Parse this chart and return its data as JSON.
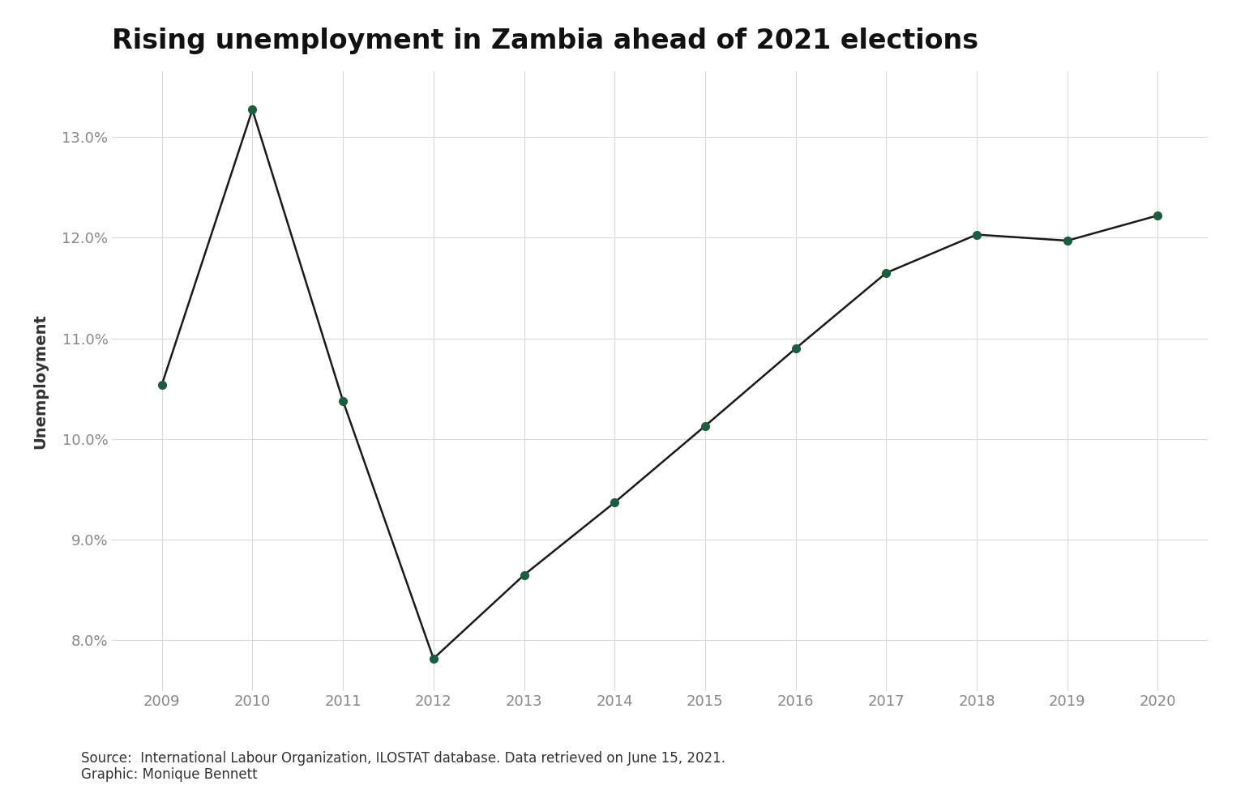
{
  "title": "Rising unemployment in Zambia ahead of 2021 elections",
  "xlabel": "",
  "ylabel": "Unemployment",
  "years": [
    2009,
    2010,
    2011,
    2012,
    2013,
    2014,
    2015,
    2016,
    2017,
    2018,
    2019,
    2020
  ],
  "values": [
    10.54,
    13.27,
    10.38,
    7.82,
    8.65,
    9.37,
    10.13,
    10.9,
    11.65,
    12.03,
    11.97,
    12.22
  ],
  "line_color": "#1a1a1a",
  "marker_color": "#1a5e42",
  "marker_size": 7,
  "line_width": 1.8,
  "ylim": [
    7.5,
    13.65
  ],
  "yticks": [
    8.0,
    9.0,
    10.0,
    11.0,
    12.0,
    13.0
  ],
  "background_color": "#ffffff",
  "grid_color": "#d8d8d8",
  "title_fontsize": 24,
  "axis_label_fontsize": 14,
  "tick_fontsize": 13,
  "tick_color": "#888888",
  "source_text": "Source:  International Labour Organization, ILOSTAT database. Data retrieved on June 15, 2021.\nGraphic: Monique Bennett",
  "source_fontsize": 12
}
